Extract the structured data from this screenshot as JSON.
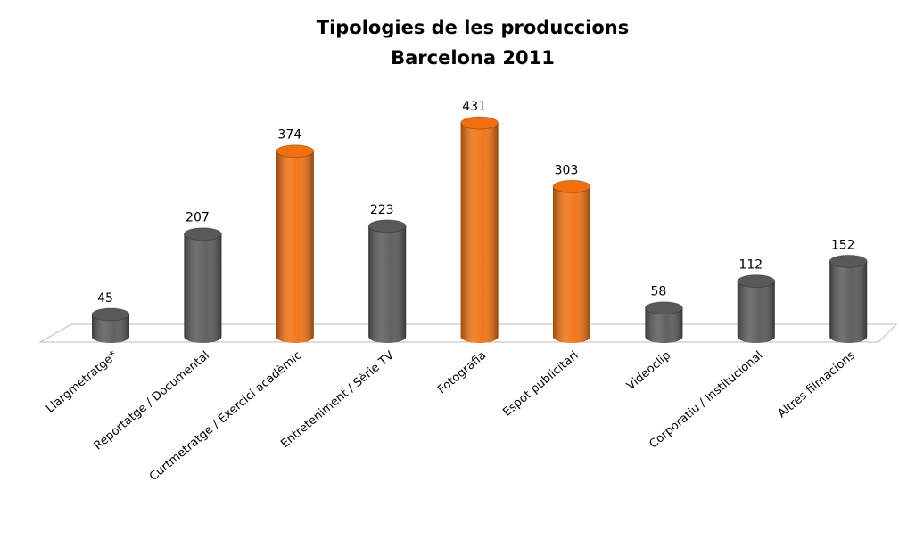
{
  "chart_data": {
    "type": "bar",
    "title": "Tipologies de les produccions",
    "subtitle": "Barcelona 2011",
    "categories": [
      "Llargmetratge*",
      "Reportatge / Documental",
      "Curtmetratge / Exercici acadèmic",
      "Entreteniment / Sèrie TV",
      "Fotografia",
      "Espot publicitari",
      "Videoclip",
      "Corporatiu / Institucional",
      "Altres filmacions"
    ],
    "values": [
      45,
      207,
      374,
      223,
      431,
      303,
      58,
      112,
      152
    ],
    "colors": [
      "#595959",
      "#595959",
      "#f07010",
      "#595959",
      "#f07010",
      "#f07010",
      "#595959",
      "#595959",
      "#595959"
    ]
  }
}
